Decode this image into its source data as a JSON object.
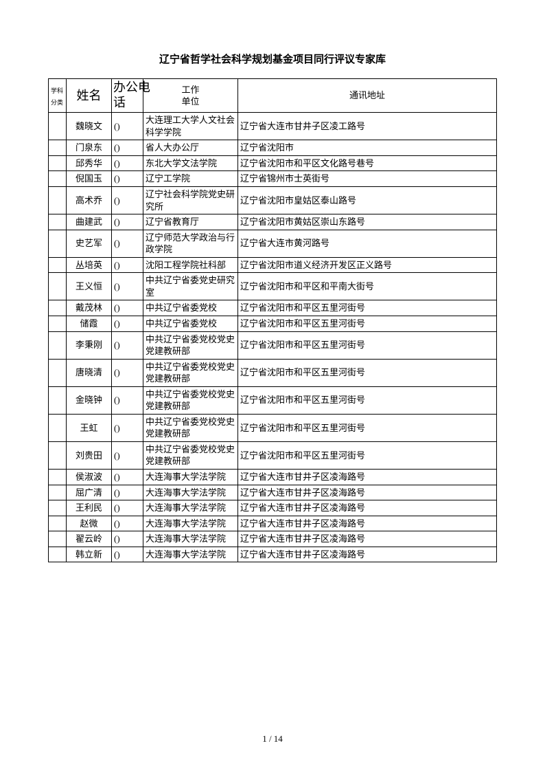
{
  "title": "辽宁省哲学社会科学规划基金项目同行评议专家库",
  "headers": {
    "subject_top": "学科",
    "subject_bottom": "分类",
    "name": "姓名",
    "phone_top": "办公电",
    "phone_bottom": "话",
    "unit_top": "工作",
    "unit_bottom": "单位",
    "address": "通讯地址"
  },
  "rows": [
    {
      "name": "魏晓文",
      "phone": "()",
      "unit": "大连理工大学人文社会科学学院",
      "addr": "辽宁省大连市甘井子区凌工路号"
    },
    {
      "name": "门泉东",
      "phone": "()",
      "unit": "省人大办公厅",
      "addr": "辽宁省沈阳市"
    },
    {
      "name": "邱秀华",
      "phone": "()",
      "unit": "东北大学文法学院",
      "addr": "辽宁省沈阳市和平区文化路号巷号"
    },
    {
      "name": "倪国玉",
      "phone": "()",
      "unit": "辽宁工学院",
      "addr": "辽宁省锦州市士英街号"
    },
    {
      "name": "高术乔",
      "phone": "()",
      "unit": "辽宁社会科学院党史研究所",
      "addr": "辽宁省沈阳市皇姑区泰山路号"
    },
    {
      "name": "曲建武",
      "phone": "()",
      "unit": "辽宁省教育厅",
      "addr": "辽宁省沈阳市黄姑区崇山东路号"
    },
    {
      "name": "史艺军",
      "phone": "()",
      "unit": "辽宁师范大学政治与行政学院",
      "addr": "辽宁省大连市黄河路号"
    },
    {
      "name": "丛培英",
      "phone": "()",
      "unit": "沈阳工程学院社科部",
      "addr": "辽宁省沈阳市道义经济开发区正义路号"
    },
    {
      "name": "王义恒",
      "phone": "()",
      "unit": "中共辽宁省委党史研究室",
      "addr": "辽宁省沈阳市和平区和平南大街号"
    },
    {
      "name": "戴茂林",
      "phone": "()",
      "unit": "中共辽宁省委党校",
      "addr": "辽宁省沈阳市和平区五里河街号"
    },
    {
      "name": "储霞",
      "phone": "()",
      "unit": "中共辽宁省委党校",
      "addr": "辽宁省沈阳市和平区五里河街号"
    },
    {
      "name": "李秉刚",
      "phone": "()",
      "unit": "中共辽宁省委党校党史党建教研部",
      "addr": "辽宁省沈阳市和平区五里河街号"
    },
    {
      "name": "唐晓清",
      "phone": "()",
      "unit": "中共辽宁省委党校党史党建教研部",
      "addr": "辽宁省沈阳市和平区五里河街号"
    },
    {
      "name": "金晓钟",
      "phone": "()",
      "unit": "中共辽宁省委党校党史党建教研部",
      "addr": "辽宁省沈阳市和平区五里河街号"
    },
    {
      "name": "王虹",
      "phone": "()",
      "unit": "中共辽宁省委党校党史党建教研部",
      "addr": "辽宁省沈阳市和平区五里河街号"
    },
    {
      "name": "刘贵田",
      "phone": "()",
      "unit": "中共辽宁省委党校党史党建教研部",
      "addr": "辽宁省沈阳市和平区五里河街号"
    },
    {
      "name": "侯淑波",
      "phone": "()",
      "unit": "大连海事大学法学院",
      "addr": "辽宁省大连市甘井子区凌海路号"
    },
    {
      "name": "屈广清",
      "phone": "()",
      "unit": "大连海事大学法学院",
      "addr": "辽宁省大连市甘井子区凌海路号"
    },
    {
      "name": "王利民",
      "phone": "()",
      "unit": "大连海事大学法学院",
      "addr": "辽宁省大连市甘井子区凌海路号"
    },
    {
      "name": "赵微",
      "phone": "()",
      "unit": "大连海事大学法学院",
      "addr": "辽宁省大连市甘井子区凌海路号"
    },
    {
      "name": "翟云岭",
      "phone": "()",
      "unit": "大连海事大学法学院",
      "addr": "辽宁省大连市甘井子区凌海路号"
    },
    {
      "name": "韩立新",
      "phone": "()",
      "unit": "大连海事大学法学院",
      "addr": "辽宁省大连市甘井子区凌海路号"
    }
  ],
  "footer": "1 / 14"
}
